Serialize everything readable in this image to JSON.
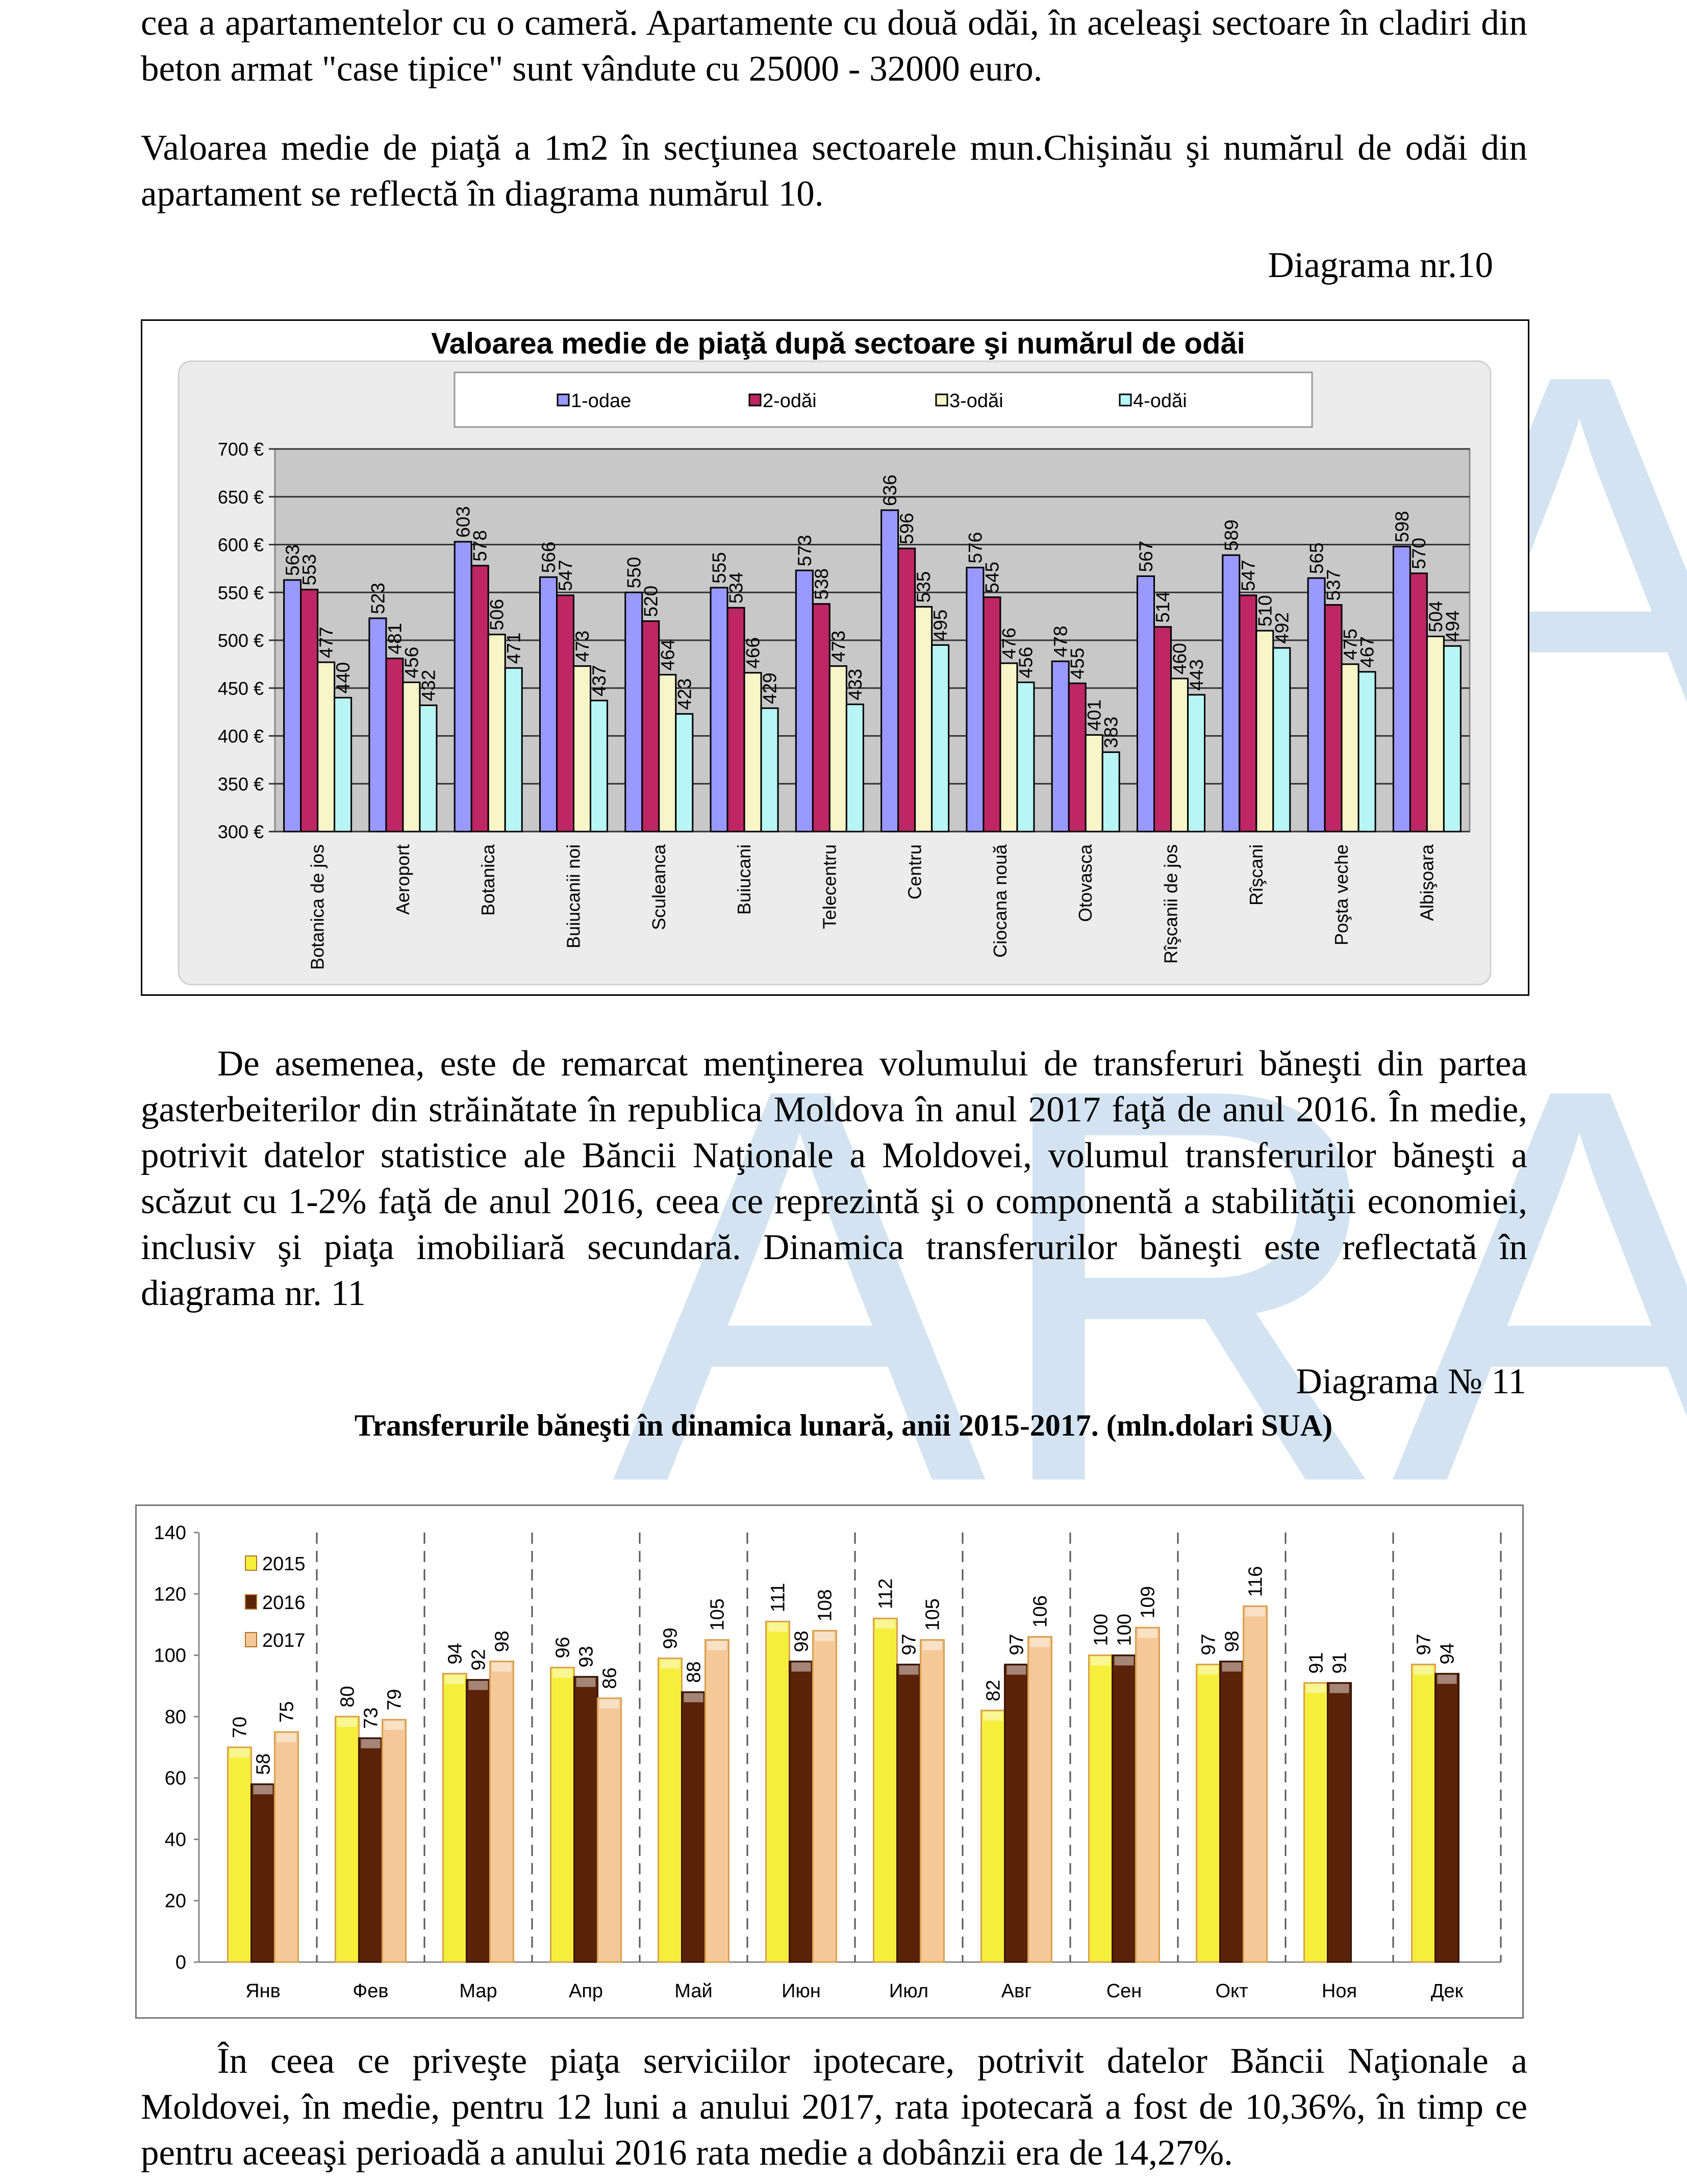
{
  "paragraphs": {
    "p1": "cea a apartamentelor cu o cameră. Apartamente cu două odăi, în aceleaşi sectoare în cladiri din beton armat \"case tipice\" sunt vândute cu 25000 - 32000 euro.",
    "p2": "Valoarea medie de piaţă a 1m2 în secţiunea sectoarele mun.Chişinău şi numărul de odăi din apartament se reflectă în diagrama numărul 10.",
    "p3": "De asemenea, este de remarcat menţinerea volumului de transferuri băneşti din partea gasterbeiterilor din străinătate în republica Moldova în anul 2017 faţă de anul 2016.  În medie, potrivit datelor statistice ale Băncii Naţionale a Moldovei, volumul transferurilor băneşti a scăzut cu 1-2% faţă de anul 2016, ceea ce reprezintă şi o componentă a stabilităţii economiei, inclusiv şi piaţa imobiliară secundară. Dinamica transferurilor băneşti este reflectată în diagrama nr. 11",
    "p4": "În ceea ce priveşte piaţa serviciilor ipotecare, potrivit datelor Băncii Naţionale a Moldovei, în medie, pentru 12 luni a anului 2017, rata ipotecară a fost de 10,36%, în timp ce pentru aceeaşi perioadă a anului 2016 rata medie a dobânzii era de 14,27%."
  },
  "diagram10_label": "Diagrama nr.10",
  "diagram11_label": "Diagrama № 11",
  "diagram11_title": "Transferurile băneşti în dinamica lunară, anii 2015-2017. (mln.dolari SUA)",
  "watermark": "ARA",
  "chart_data": [
    {
      "type": "bar",
      "title": "Valoarea medie de piaţă după sectoare şi numărul de odăi",
      "categories": [
        "Botanica de jos",
        "Aeroport",
        "Botanica",
        "Buiucanii noi",
        "Sculeanca",
        "Buiucani",
        "Telecentru",
        "Centru",
        "Ciocana nouă",
        "Otovasca",
        "Rîşcanii de jos",
        "Rîşcani",
        "Poşta veche",
        "Albişoara"
      ],
      "series": [
        {
          "name": "1-odae",
          "color": "#9999ff",
          "values": [
            563,
            523,
            603,
            566,
            550,
            555,
            573,
            636,
            576,
            478,
            567,
            589,
            565,
            598
          ]
        },
        {
          "name": "2-odăi",
          "color": "#be2665",
          "values": [
            553,
            481,
            578,
            547,
            520,
            534,
            538,
            596,
            545,
            455,
            514,
            547,
            537,
            570
          ]
        },
        {
          "name": "3-odăi",
          "color": "#f8f6c8",
          "values": [
            477,
            456,
            506,
            473,
            464,
            466,
            473,
            535,
            476,
            401,
            460,
            510,
            475,
            504
          ]
        },
        {
          "name": "4-odăi",
          "color": "#b8f6f6",
          "values": [
            440,
            432,
            471,
            437,
            423,
            429,
            433,
            495,
            456,
            383,
            443,
            492,
            467,
            494
          ]
        }
      ],
      "ylim": [
        300,
        700
      ],
      "yticks": [
        "300 €",
        "350 €",
        "400 €",
        "450 €",
        "500 €",
        "550 €",
        "600 €",
        "650 €",
        "700 €"
      ],
      "ytick_values": [
        300,
        350,
        400,
        450,
        500,
        550,
        600,
        650,
        700
      ],
      "grid": true,
      "legend": "top",
      "data_labels": true
    },
    {
      "type": "bar",
      "title": "",
      "categories": [
        "Янв",
        "Фев",
        "Мар",
        "Апр",
        "Май",
        "Июн",
        "Июл",
        "Авг",
        "Сен",
        "Окт",
        "Ноя",
        "Дек"
      ],
      "series": [
        {
          "name": "2015",
          "color": "#f5ef3c",
          "values": [
            70,
            80,
            94,
            96,
            99,
            111,
            112,
            82,
            100,
            97,
            91,
            97
          ]
        },
        {
          "name": "2016",
          "color": "#5a2208",
          "values": [
            58,
            73,
            92,
            93,
            88,
            98,
            97,
            97,
            100,
            98,
            91,
            94
          ]
        },
        {
          "name": "2017",
          "color": "#f5c898",
          "values": [
            75,
            79,
            98,
            86,
            105,
            108,
            105,
            106,
            109,
            116,
            null,
            null
          ]
        }
      ],
      "ylim": [
        0,
        140
      ],
      "yticks": [
        "0",
        "20",
        "40",
        "60",
        "80",
        "100",
        "120",
        "140"
      ],
      "ytick_values": [
        0,
        20,
        40,
        60,
        80,
        100,
        120,
        140
      ],
      "grid": false,
      "legend": "top-left",
      "data_labels": true
    }
  ]
}
